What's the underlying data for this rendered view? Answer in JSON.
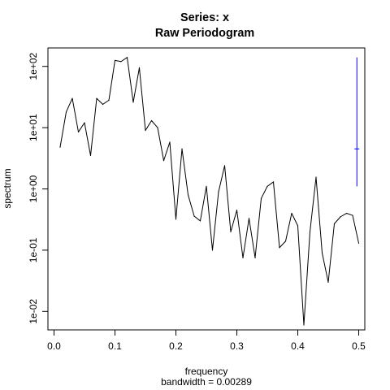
{
  "chart_data": {
    "type": "line",
    "title_line1": "Series: x",
    "title_line2": "Raw Periodogram",
    "xlabel": "frequency",
    "xlabel_sub": "bandwidth = 0.00289",
    "ylabel": "spectrum",
    "y_scale": "log",
    "xlim": [
      -0.01,
      0.51
    ],
    "ylim": [
      0.005,
      200
    ],
    "x_ticks": [
      0.0,
      0.1,
      0.2,
      0.3,
      0.4,
      0.5
    ],
    "x_tick_labels": [
      "0.0",
      "0.1",
      "0.2",
      "0.3",
      "0.4",
      "0.5"
    ],
    "y_ticks": [
      0.01,
      0.1,
      1,
      10,
      100
    ],
    "y_tick_labels": [
      "1e-02",
      "1e-01",
      "1e+00",
      "1e+01",
      "1e+02"
    ],
    "series": [
      {
        "color": "#000000",
        "x": [
          0.01,
          0.02,
          0.03,
          0.04,
          0.05,
          0.06,
          0.07,
          0.08,
          0.09,
          0.1,
          0.11,
          0.12,
          0.13,
          0.14,
          0.15,
          0.16,
          0.17,
          0.18,
          0.19,
          0.2,
          0.21,
          0.22,
          0.23,
          0.24,
          0.25,
          0.26,
          0.27,
          0.28,
          0.29,
          0.3,
          0.31,
          0.32,
          0.33,
          0.34,
          0.35,
          0.36,
          0.37,
          0.38,
          0.39,
          0.4,
          0.41,
          0.42,
          0.43,
          0.44,
          0.45,
          0.46,
          0.47,
          0.48,
          0.49,
          0.5
        ],
        "y": [
          4.8,
          18,
          30,
          8.5,
          12,
          3.5,
          30,
          24,
          28,
          125,
          120,
          140,
          26,
          95,
          9,
          13,
          10,
          2.9,
          5.8,
          0.32,
          4.5,
          0.8,
          0.36,
          0.3,
          1.1,
          0.1,
          0.9,
          2.4,
          0.2,
          0.45,
          0.075,
          0.33,
          0.075,
          0.7,
          1.1,
          1.3,
          0.11,
          0.14,
          0.4,
          0.25,
          0.006,
          0.2,
          1.55,
          0.09,
          0.03,
          0.27,
          0.35,
          0.4,
          0.37,
          0.13
        ]
      }
    ],
    "bandwidth_bar": {
      "color": "#0000ff",
      "x": 0.497,
      "y_center": 4.5,
      "y_low": 1.1,
      "y_high": 140
    }
  }
}
